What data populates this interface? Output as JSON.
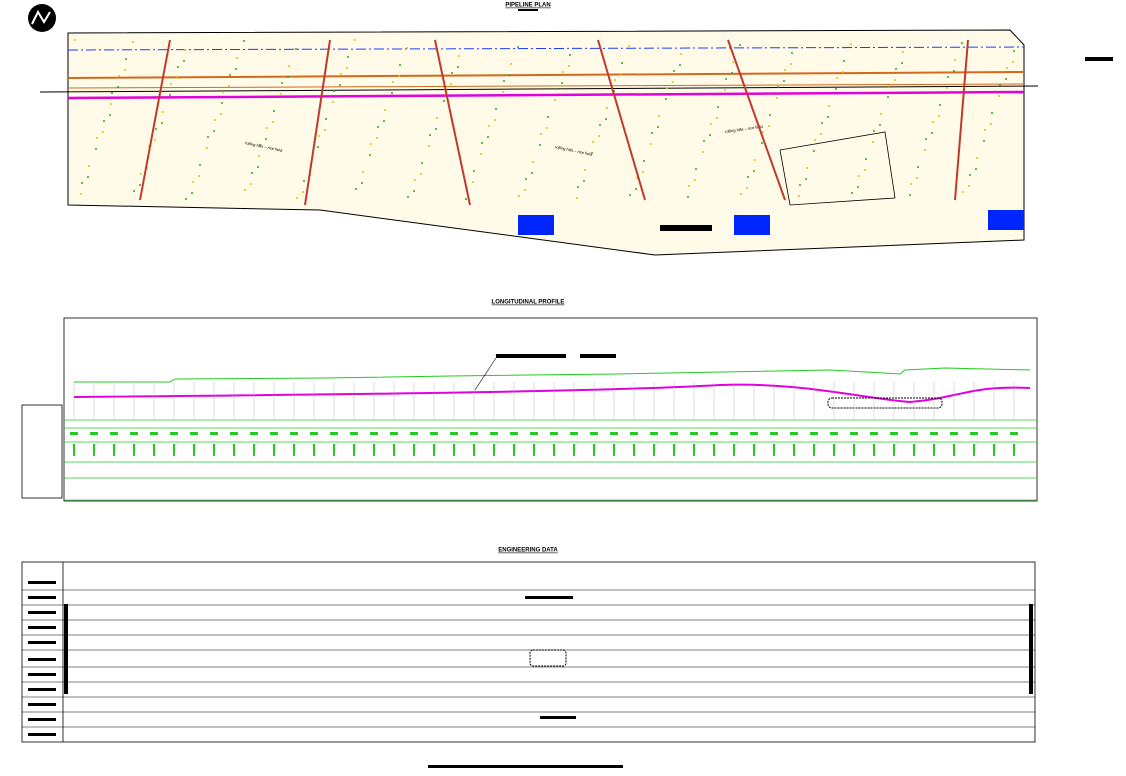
{
  "plan": {
    "title": "PIPELINE PLAN",
    "field_labels": [
      "rolling hills – rice field",
      "rolling hills – rice field",
      "rolling hills – rice field"
    ]
  },
  "profile": {
    "title": "LONGITUDINAL PROFILE"
  },
  "engineering": {
    "title": "ENGINEERING DATA"
  }
}
